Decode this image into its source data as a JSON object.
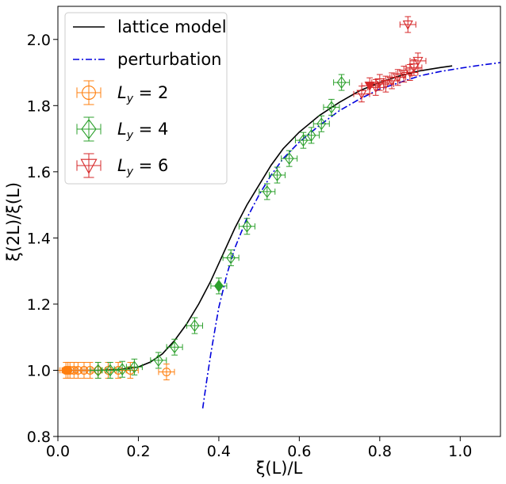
{
  "chart_data": {
    "type": "scatter",
    "xlabel": "ξ(L)/L",
    "ylabel": "ξ(2L)/ξ(L)",
    "xlim": [
      0.0,
      1.1
    ],
    "ylim": [
      0.8,
      2.1
    ],
    "xticks": [
      0.0,
      0.2,
      0.4,
      0.6,
      0.8,
      1.0
    ],
    "yticks": [
      0.8,
      1.0,
      1.2,
      1.4,
      1.6,
      1.8,
      2.0
    ],
    "xtick_labels": [
      "0.0",
      "0.2",
      "0.4",
      "0.6",
      "0.8",
      "1.0"
    ],
    "ytick_labels": [
      "0.8",
      "1.0",
      "1.2",
      "1.4",
      "1.6",
      "1.8",
      "2.0"
    ],
    "grid": false,
    "legend_position": "top-left",
    "lines": [
      {
        "name": "lattice model",
        "color": "#000000",
        "style": "solid",
        "x": [
          0.02,
          0.05,
          0.1,
          0.15,
          0.2,
          0.23,
          0.26,
          0.29,
          0.32,
          0.35,
          0.38,
          0.41,
          0.44,
          0.47,
          0.5,
          0.53,
          0.56,
          0.6,
          0.65,
          0.7,
          0.75,
          0.8,
          0.85,
          0.9,
          0.95,
          0.98
        ],
        "y": [
          1.0,
          1.0,
          1.0,
          1.002,
          1.01,
          1.025,
          1.05,
          1.09,
          1.14,
          1.2,
          1.27,
          1.35,
          1.43,
          1.5,
          1.56,
          1.62,
          1.67,
          1.72,
          1.77,
          1.81,
          1.845,
          1.87,
          1.89,
          1.905,
          1.915,
          1.92
        ]
      },
      {
        "name": "perturbation",
        "color": "#0000dd",
        "style": "dashdot",
        "x": [
          0.36,
          0.37,
          0.38,
          0.39,
          0.4,
          0.42,
          0.44,
          0.47,
          0.5,
          0.53,
          0.56,
          0.6,
          0.65,
          0.7,
          0.75,
          0.8,
          0.85,
          0.9,
          0.95,
          1.0,
          1.05,
          1.1
        ],
        "y": [
          0.885,
          0.97,
          1.05,
          1.12,
          1.19,
          1.29,
          1.37,
          1.46,
          1.53,
          1.59,
          1.64,
          1.69,
          1.74,
          1.785,
          1.82,
          1.85,
          1.87,
          1.89,
          1.903,
          1.913,
          1.922,
          1.93
        ]
      }
    ],
    "series": [
      {
        "name": "L_y = 2",
        "label_base": "L",
        "label_sub": "y",
        "label_rest": " = 2",
        "color": "#ff7f0e",
        "marker": "circle",
        "points": [
          {
            "x": 0.02,
            "y": 1.0,
            "filled": true
          },
          {
            "x": 0.025,
            "y": 1.0,
            "filled": true
          },
          {
            "x": 0.03,
            "y": 1.0
          },
          {
            "x": 0.04,
            "y": 1.0
          },
          {
            "x": 0.05,
            "y": 1.0
          },
          {
            "x": 0.065,
            "y": 1.0
          },
          {
            "x": 0.08,
            "y": 1.0
          },
          {
            "x": 0.1,
            "y": 1.0
          },
          {
            "x": 0.125,
            "y": 1.0
          },
          {
            "x": 0.15,
            "y": 1.0
          },
          {
            "x": 0.18,
            "y": 1.0
          },
          {
            "x": 0.27,
            "y": 0.995
          }
        ]
      },
      {
        "name": "L_y = 4",
        "label_base": "L",
        "label_sub": "y",
        "label_rest": " = 4",
        "color": "#2ca02c",
        "marker": "diamond",
        "points": [
          {
            "x": 0.1,
            "y": 1.0
          },
          {
            "x": 0.13,
            "y": 1.0
          },
          {
            "x": 0.16,
            "y": 1.003
          },
          {
            "x": 0.19,
            "y": 1.01
          },
          {
            "x": 0.25,
            "y": 1.03
          },
          {
            "x": 0.29,
            "y": 1.07
          },
          {
            "x": 0.34,
            "y": 1.135
          },
          {
            "x": 0.4,
            "y": 1.255,
            "filled": true
          },
          {
            "x": 0.43,
            "y": 1.34
          },
          {
            "x": 0.47,
            "y": 1.435
          },
          {
            "x": 0.52,
            "y": 1.54
          },
          {
            "x": 0.545,
            "y": 1.59
          },
          {
            "x": 0.575,
            "y": 1.64
          },
          {
            "x": 0.61,
            "y": 1.695
          },
          {
            "x": 0.63,
            "y": 1.71
          },
          {
            "x": 0.655,
            "y": 1.745
          },
          {
            "x": 0.68,
            "y": 1.795
          },
          {
            "x": 0.705,
            "y": 1.87
          }
        ]
      },
      {
        "name": "L_y = 6",
        "label_base": "L",
        "label_sub": "y",
        "label_rest": " = 6",
        "color": "#d62728",
        "marker": "triangle-down",
        "points": [
          {
            "x": 0.755,
            "y": 1.835
          },
          {
            "x": 0.775,
            "y": 1.86,
            "filled": true
          },
          {
            "x": 0.79,
            "y": 1.855
          },
          {
            "x": 0.8,
            "y": 1.87
          },
          {
            "x": 0.815,
            "y": 1.865
          },
          {
            "x": 0.83,
            "y": 1.875
          },
          {
            "x": 0.845,
            "y": 1.885
          },
          {
            "x": 0.86,
            "y": 1.895
          },
          {
            "x": 0.875,
            "y": 1.9
          },
          {
            "x": 0.885,
            "y": 1.915
          },
          {
            "x": 0.895,
            "y": 1.935
          },
          {
            "x": 0.87,
            "y": 2.045
          }
        ]
      }
    ]
  }
}
